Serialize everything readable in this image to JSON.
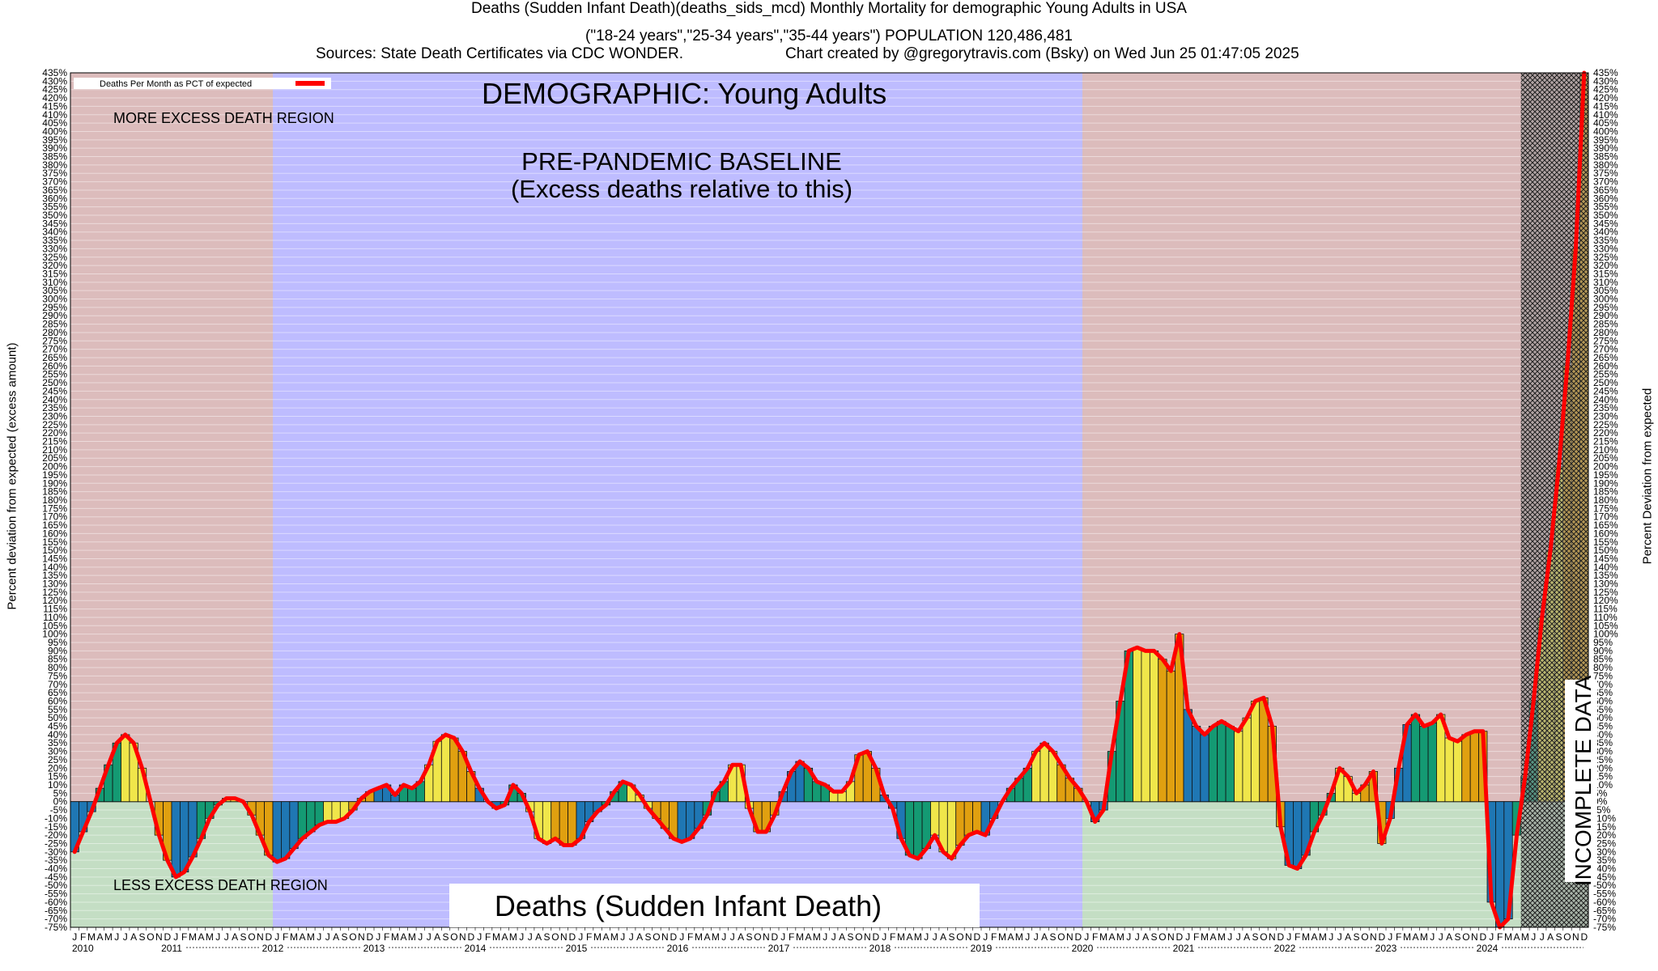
{
  "header": {
    "line1": "Deaths (Sudden Infant Death)(deaths_sids_mcd) Monthly Mortality for demographic Young Adults in USA",
    "line2": "(\"18-24 years\",\"25-34 years\",\"35-44 years\") POPULATION 120,486,481",
    "line3a": "Sources: State Death Certificates via CDC WONDER.",
    "line3b": "Chart created by @gregorytravis.com (Bsky) on Wed Jun 25 01:47:05 2025"
  },
  "chart_data": {
    "type": "bar",
    "title": "Deaths (Sudden Infant Death)(deaths_sids_mcd) Monthly Mortality for demographic Young Adults in USA",
    "ylabel_left": "Percent deviation from expected (excess amount)",
    "ylabel_right": "Percent Deviation from expected",
    "ylim": [
      -75,
      435
    ],
    "ytick_step": 5,
    "legend": {
      "label": "Deaths Per Month as PCT of expected",
      "placement": "top-left",
      "line_color": "#ff0000"
    },
    "annotations": {
      "demographic": "DEMOGRAPHIC: Young Adults",
      "baseline_line1": "PRE-PANDEMIC BASELINE",
      "baseline_line2": "(Excess deaths relative to this)",
      "more_region": "MORE EXCESS DEATH REGION",
      "less_region": "LESS EXCESS DEATH REGION",
      "cause_box": "Deaths (Sudden Infant Death)",
      "incomplete": "INCOMPLETE DATA"
    },
    "month_letters": [
      "J",
      "F",
      "M",
      "A",
      "M",
      "J",
      "J",
      "A",
      "S",
      "O",
      "N",
      "D"
    ],
    "years": [
      "2010",
      "2011",
      "2012",
      "2013",
      "2014",
      "2015",
      "2016",
      "2017",
      "2018",
      "2019",
      "2020",
      "2021",
      "2022",
      "2023",
      "2024"
    ],
    "months_total": 180,
    "baseline_start_index": 24,
    "pandemic_start_index": 120,
    "incomplete_start_index": 172,
    "colors": {
      "more_region": "#dcbcbc",
      "less_region": "#c4dec4",
      "baseline_region": "#bebcff",
      "line": "#ff0000",
      "quarter_colors": [
        "#1f77b4",
        "#149a73",
        "#f0e64a",
        "#e0a010"
      ]
    },
    "values": [
      -30,
      -18,
      -6,
      8,
      22,
      35,
      40,
      35,
      20,
      0,
      -20,
      -35,
      -45,
      -42,
      -33,
      -22,
      -10,
      -2,
      2,
      2,
      0,
      -8,
      -20,
      -32,
      -36,
      -34,
      -28,
      -22,
      -18,
      -14,
      -12,
      -12,
      -10,
      -5,
      2,
      6,
      8,
      10,
      4,
      10,
      8,
      12,
      22,
      36,
      40,
      38,
      30,
      18,
      8,
      0,
      -4,
      -2,
      10,
      5,
      -6,
      -22,
      -25,
      -22,
      -26,
      -26,
      -22,
      -12,
      -6,
      -2,
      6,
      12,
      10,
      4,
      -4,
      -10,
      -16,
      -22,
      -24,
      -22,
      -16,
      -8,
      6,
      12,
      22,
      22,
      -4,
      -18,
      -18,
      -8,
      6,
      18,
      24,
      20,
      12,
      10,
      6,
      6,
      12,
      28,
      30,
      20,
      4,
      -4,
      -22,
      -32,
      -34,
      -28,
      -20,
      -30,
      -34,
      -26,
      -20,
      -18,
      -20,
      -10,
      0,
      8,
      14,
      20,
      30,
      35,
      30,
      22,
      14,
      8,
      0,
      -12,
      -5,
      30,
      60,
      90,
      92,
      90,
      90,
      85,
      78,
      100,
      55,
      45,
      40,
      45,
      48,
      45,
      42,
      50,
      60,
      62,
      45,
      -15,
      -38,
      -40,
      -32,
      -18,
      -8,
      5,
      20,
      15,
      5,
      10,
      18,
      -25,
      -10,
      20,
      46,
      52,
      45,
      47,
      52,
      38,
      36,
      40,
      42,
      42,
      -60,
      -75,
      -70,
      -20,
      15,
      60,
      110,
      150,
      200,
      260,
      330,
      435
    ]
  }
}
